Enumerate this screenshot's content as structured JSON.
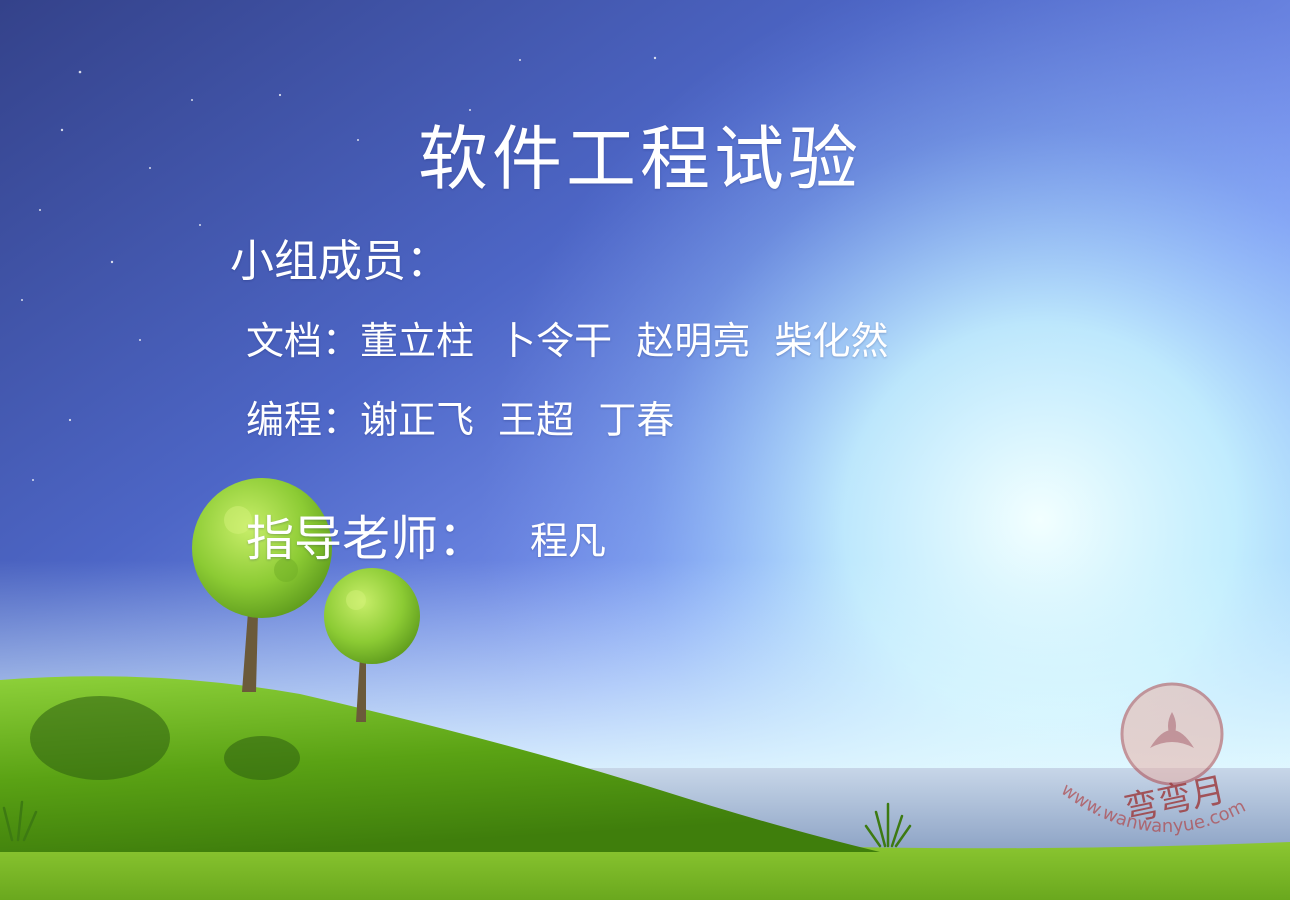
{
  "slide": {
    "title": "软件工程试验",
    "members_heading": "小组成员：",
    "documentation_line": "文档：董立柱  卜令干  赵明亮  柴化然",
    "programming_line": "编程：谢正飞  王超  丁春",
    "advisor_label": "指导老师：",
    "advisor_name": "程凡"
  },
  "watermark": {
    "brand": "弯弯月",
    "url": "www.wanwanyue.com"
  },
  "colors": {
    "sky_top": "#3e4f9c",
    "sky_mid": "#6f8df0",
    "sky_glow": "#e4fbff",
    "grass": "#6fb51e",
    "tree_canopy": "#8fcc35",
    "watermark": "#b0474a"
  }
}
